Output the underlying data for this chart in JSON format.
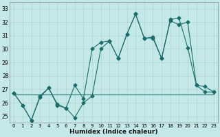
{
  "xlabel": "Humidex (Indice chaleur)",
  "xlim": [
    -0.5,
    23.5
  ],
  "ylim": [
    24.5,
    33.5
  ],
  "yticks": [
    25,
    26,
    27,
    28,
    29,
    30,
    31,
    32,
    33
  ],
  "xticks": [
    0,
    1,
    2,
    3,
    4,
    5,
    6,
    7,
    8,
    9,
    10,
    11,
    12,
    13,
    14,
    15,
    16,
    17,
    18,
    19,
    20,
    21,
    22,
    23
  ],
  "bg_color": "#c4e8e8",
  "grid_color": "#aed4d4",
  "line_color": "#1a6e6a",
  "line1_y": [
    26.7,
    25.8,
    24.7,
    26.4,
    27.1,
    25.8,
    25.6,
    24.9,
    26.0,
    26.5,
    30.0,
    30.6,
    29.3,
    31.1,
    32.6,
    30.8,
    30.8,
    29.3,
    32.1,
    31.8,
    32.0,
    27.3,
    27.2,
    26.8
  ],
  "line2_y": [
    26.7,
    25.8,
    24.7,
    26.5,
    27.1,
    25.9,
    25.6,
    27.3,
    26.3,
    30.0,
    30.5,
    30.6,
    29.3,
    31.1,
    32.6,
    30.8,
    30.9,
    29.3,
    32.2,
    32.3,
    30.1,
    27.3,
    26.8,
    26.8
  ],
  "line3_y": [
    26.6,
    26.6,
    26.6,
    26.6,
    26.6,
    26.6,
    26.6,
    26.6,
    26.6,
    26.6,
    26.6,
    26.6,
    26.6,
    26.6,
    26.6,
    26.6,
    26.6,
    26.6,
    26.6,
    26.6,
    26.6,
    26.6,
    26.6,
    26.6
  ],
  "marker_size": 2.5,
  "lw": 0.8,
  "ytick_fontsize": 5.5,
  "xtick_fontsize": 5.0,
  "xlabel_fontsize": 6.5
}
